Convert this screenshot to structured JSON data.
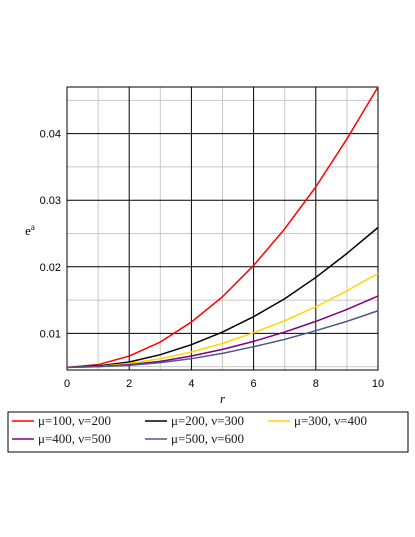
{
  "chart_data": {
    "type": "line",
    "title": "",
    "xlabel": "r",
    "ylabel_base": "e",
    "ylabel_sup": "a",
    "xlim": [
      0,
      10
    ],
    "ylim": [
      0.0045,
      0.047
    ],
    "x_ticks": [
      0,
      2,
      4,
      6,
      8,
      10
    ],
    "x_tick_labels": [
      "0",
      "2",
      "4",
      "6",
      "8",
      "10"
    ],
    "y_ticks": [
      0.01,
      0.02,
      0.03,
      0.04
    ],
    "y_tick_labels": [
      "0.01",
      "0.02",
      "0.03",
      "0.04"
    ],
    "grid": true,
    "legend_position": "bottom",
    "x": [
      0,
      1,
      2,
      3,
      4,
      5,
      6,
      7,
      8,
      9,
      10
    ],
    "series": [
      {
        "name": "μ=100, ν=200",
        "color": "#ff0000",
        "values": [
          0.0049,
          0.0053,
          0.0066,
          0.0087,
          0.0117,
          0.0155,
          0.0202,
          0.0257,
          0.032,
          0.0392,
          0.047
        ]
      },
      {
        "name": "μ=200, ν=300",
        "color": "#000000",
        "values": [
          0.0049,
          0.0051,
          0.0057,
          0.0068,
          0.0083,
          0.0102,
          0.0125,
          0.0152,
          0.0184,
          0.022,
          0.0259
        ]
      },
      {
        "name": "μ=300, ν=400",
        "color": "#ffd700",
        "values": [
          0.0049,
          0.005,
          0.0055,
          0.0062,
          0.0072,
          0.0085,
          0.0101,
          0.0119,
          0.014,
          0.0164,
          0.019
        ]
      },
      {
        "name": "μ=400, ν=500",
        "color": "#800080",
        "values": [
          0.0049,
          0.005,
          0.0053,
          0.0058,
          0.0066,
          0.0076,
          0.0088,
          0.0102,
          0.0118,
          0.0136,
          0.0156
        ]
      },
      {
        "name": "μ=500, ν=600",
        "color": "#4a5a8c",
        "values": [
          0.0049,
          0.005,
          0.0052,
          0.0056,
          0.0062,
          0.007,
          0.008,
          0.0091,
          0.0104,
          0.0118,
          0.0134
        ]
      }
    ]
  }
}
